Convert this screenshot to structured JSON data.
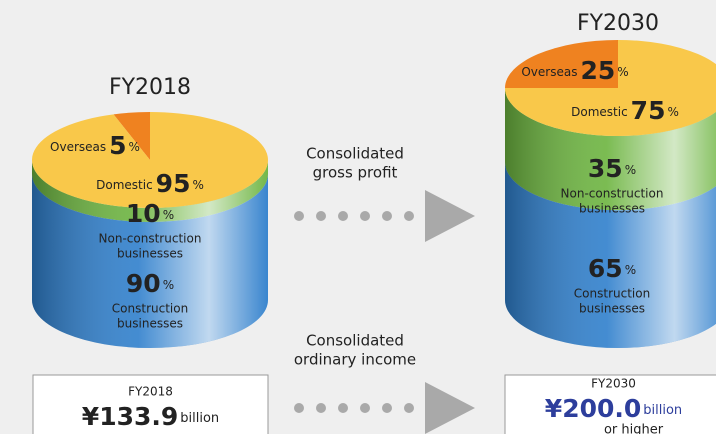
{
  "value_unit": "%",
  "cylinders": [
    {
      "title": "FY2018",
      "top": [
        {
          "name": "Overseas",
          "value": 5,
          "color": "#ef8220"
        },
        {
          "name": "Domestic",
          "value": 95,
          "color": "#f9c84a"
        }
      ],
      "side": [
        {
          "value": 10,
          "name_lines": [
            "Non-construction",
            "businesses"
          ],
          "color": "#6cb43f"
        },
        {
          "value": 90,
          "name_lines": [
            "Construction",
            "businesses"
          ],
          "color": "#2f7fcc"
        }
      ]
    },
    {
      "title": "FY2030",
      "top": [
        {
          "name": "Overseas",
          "value": 25,
          "color": "#ef8220"
        },
        {
          "name": "Domestic",
          "value": 75,
          "color": "#f9c84a"
        }
      ],
      "side": [
        {
          "value": 35,
          "name_lines": [
            "Non-construction",
            "businesses"
          ],
          "color": "#6cb43f"
        },
        {
          "value": 65,
          "name_lines": [
            "Construction",
            "businesses"
          ],
          "color": "#2f7fcc"
        }
      ]
    }
  ],
  "arrows": [
    {
      "label_lines": [
        "Consolidated",
        "gross profit"
      ]
    },
    {
      "label_lines": [
        "Consolidated",
        "ordinary income"
      ]
    }
  ],
  "boxes": [
    {
      "year": "FY2018",
      "amount": "¥133.9",
      "unit": "billion"
    },
    {
      "year": "FY2030",
      "amount": "¥200.0",
      "unit": "billion",
      "note": "or higher"
    }
  ]
}
